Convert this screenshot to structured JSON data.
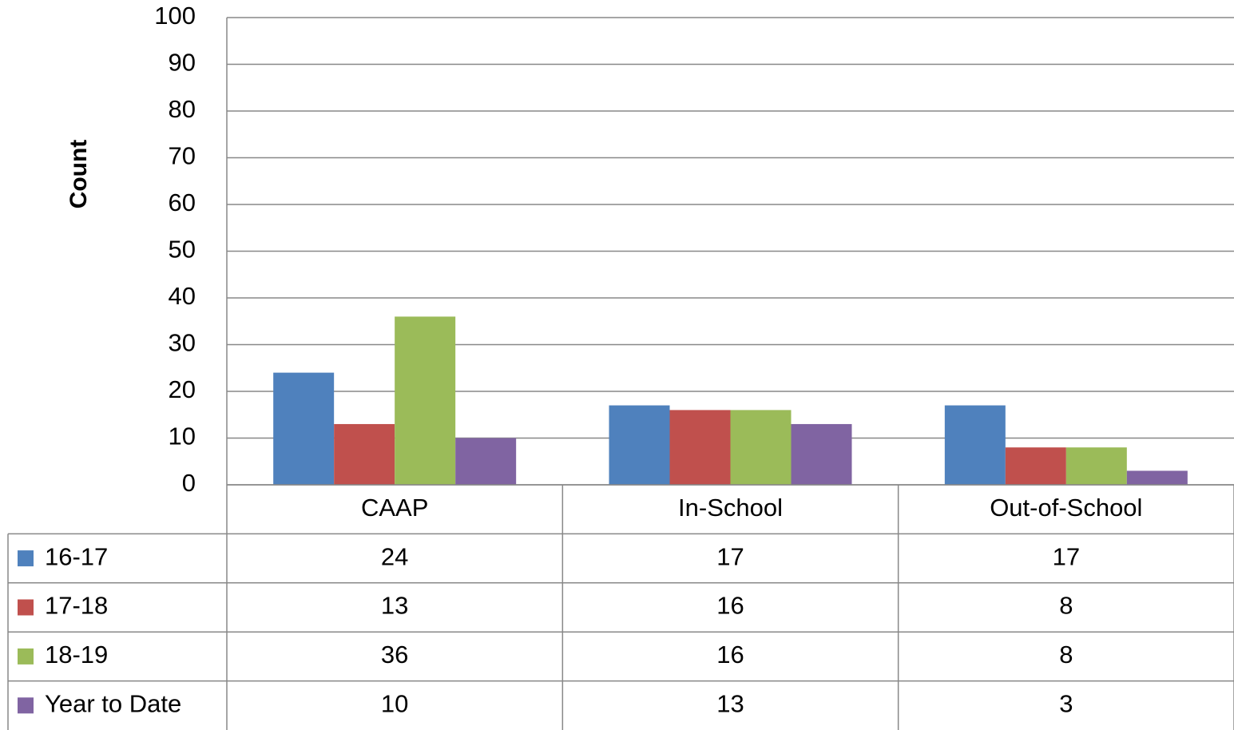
{
  "chart_data": {
    "type": "bar",
    "y_label": "Count",
    "categories": [
      "CAAP",
      "In-School",
      "Out-of-School"
    ],
    "series": [
      {
        "name": "16-17",
        "color": "#4f81bd",
        "values": [
          24,
          17,
          17
        ]
      },
      {
        "name": "17-18",
        "color": "#c0504d",
        "values": [
          13,
          16,
          8
        ]
      },
      {
        "name": "18-19",
        "color": "#9bbb59",
        "values": [
          36,
          16,
          8
        ]
      },
      {
        "name": "Year to Date",
        "color": "#8064a2",
        "values": [
          10,
          13,
          3
        ]
      }
    ],
    "ylim": [
      0,
      100
    ],
    "yticks": [
      0,
      10,
      20,
      30,
      40,
      50,
      60,
      70,
      80,
      90,
      100
    ],
    "grid": true,
    "data_table": true
  }
}
